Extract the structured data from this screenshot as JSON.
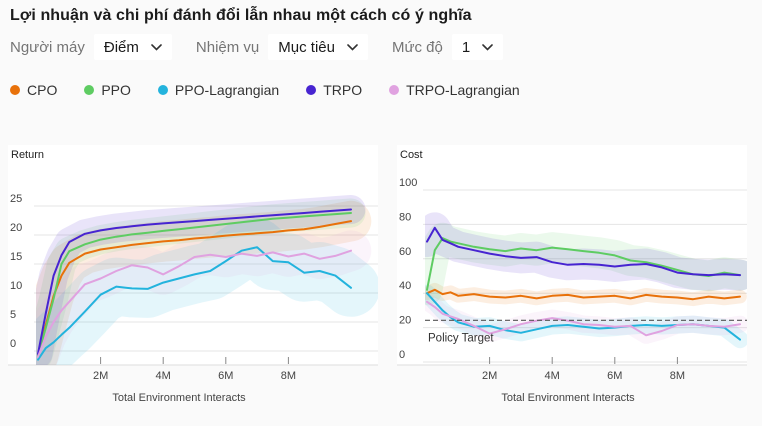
{
  "title": "Lợi nhuận và chi phí đánh đổi lẫn nhau một cách có ý nghĩa",
  "controls": [
    {
      "label": "Người máy",
      "value": "Điểm"
    },
    {
      "label": "Nhiệm vụ",
      "value": "Mục tiêu"
    },
    {
      "label": "Mức độ",
      "value": "1"
    }
  ],
  "legend": [
    {
      "label": "CPO",
      "color": "#e8710a"
    },
    {
      "label": "PPO",
      "color": "#5ecc62"
    },
    {
      "label": "PPO-Lagrangian",
      "color": "#23b3dd"
    },
    {
      "label": "TRPO",
      "color": "#4724d1"
    },
    {
      "label": "TRPO-Lagrangian",
      "color": "#e0a2e0"
    }
  ],
  "chart_data": [
    {
      "type": "line",
      "title": "Return",
      "xlabel": "Total Environment Interacts",
      "xlim": [
        0,
        10
      ],
      "x_tick_values": [
        2,
        4,
        6,
        8
      ],
      "x_tick_labels": [
        "2M",
        "4M",
        "6M",
        "8M"
      ],
      "y_ticks": [
        0,
        5,
        10,
        15,
        20,
        25
      ],
      "ylim": [
        -2,
        27
      ],
      "grid": true,
      "x": [
        0,
        0.25,
        0.5,
        0.75,
        1,
        1.5,
        2,
        2.5,
        3,
        3.5,
        4,
        4.5,
        5,
        5.5,
        6,
        6.5,
        7,
        7.5,
        8,
        8.5,
        9,
        9.5,
        10
      ],
      "series": [
        {
          "name": "CPO",
          "color": "#e8710a",
          "band": 3.5,
          "values": [
            -0.8,
            4.5,
            9.5,
            13,
            15.2,
            16.8,
            17.5,
            17.9,
            18.3,
            18.6,
            18.9,
            19.1,
            19.4,
            19.6,
            19.9,
            20.1,
            20.3,
            20.5,
            20.8,
            21.0,
            21.4,
            21.9,
            22.4
          ]
        },
        {
          "name": "PPO",
          "color": "#5ecc62",
          "band": 2.5,
          "values": [
            -0.8,
            4,
            9,
            15,
            17.2,
            18.4,
            19.2,
            19.7,
            20.1,
            20.4,
            20.7,
            21.0,
            21.3,
            21.6,
            21.9,
            22.2,
            22.5,
            22.8,
            23.0,
            23.2,
            23.4,
            23.6,
            23.8
          ]
        },
        {
          "name": "PPO-Lagrangian",
          "color": "#23b3dd",
          "band": 5,
          "values": [
            -1.5,
            0.5,
            1.5,
            2.8,
            4.0,
            6.8,
            9.7,
            11.1,
            10.8,
            10.7,
            11.8,
            12.5,
            13.2,
            13.8,
            15.5,
            17.3,
            17.9,
            15.5,
            15.3,
            13.5,
            13.8,
            13.0,
            10.9
          ]
        },
        {
          "name": "TRPO",
          "color": "#4724d1",
          "band": 2.5,
          "values": [
            -0.5,
            6.5,
            13,
            16.5,
            18.8,
            20.2,
            20.8,
            21.2,
            21.5,
            21.8,
            22.0,
            22.2,
            22.4,
            22.6,
            22.8,
            23.0,
            23.2,
            23.4,
            23.6,
            23.8,
            24.0,
            24.2,
            24.4
          ]
        },
        {
          "name": "TRPO-Lagrangian",
          "color": "#e0a2e0",
          "band": 3.5,
          "values": [
            -1,
            2.5,
            5,
            7,
            8.5,
            11.5,
            12.5,
            13.8,
            14.8,
            14.4,
            13.2,
            14.6,
            16.2,
            16.6,
            16.2,
            16.8,
            16.4,
            17.0,
            16.3,
            16.8,
            15.9,
            16.4,
            17.3
          ]
        }
      ]
    },
    {
      "type": "line",
      "title": "Cost",
      "xlabel": "Total Environment Interacts",
      "xlim": [
        0,
        10
      ],
      "x_tick_values": [
        2,
        4,
        6,
        8
      ],
      "x_tick_labels": [
        "2M",
        "4M",
        "6M",
        "8M"
      ],
      "y_ticks": [
        0,
        20,
        40,
        60,
        80,
        100
      ],
      "ylim": [
        0,
        105
      ],
      "grid": true,
      "policy_target": {
        "label": "Policy Target",
        "value": 25
      },
      "x": [
        0,
        0.25,
        0.5,
        0.75,
        1,
        1.5,
        2,
        2.5,
        3,
        3.5,
        4,
        4.5,
        5,
        5.5,
        6,
        6.5,
        7,
        7.5,
        8,
        8.5,
        9,
        9.5,
        10
      ],
      "series": [
        {
          "name": "CPO",
          "color": "#e8710a",
          "band": 4,
          "values": [
            40,
            42,
            39.5,
            40.5,
            38.5,
            39.5,
            38,
            37.5,
            38.5,
            37,
            38.5,
            39,
            37.5,
            38,
            38.5,
            37,
            39,
            38,
            37.5,
            36.5,
            38,
            37,
            38
          ]
        },
        {
          "name": "PPO",
          "color": "#5ecc62",
          "band": 9,
          "values": [
            42,
            65,
            72,
            70,
            69,
            67,
            65.5,
            64.5,
            66,
            65,
            66.5,
            65.5,
            64.5,
            63.5,
            62,
            59,
            58,
            56,
            53.5,
            51,
            50,
            52,
            50.5
          ]
        },
        {
          "name": "PPO-Lagrangian",
          "color": "#23b3dd",
          "band": 5,
          "values": [
            40,
            35,
            30,
            26,
            23,
            20.5,
            21,
            18.5,
            17,
            19,
            21,
            21.5,
            20.5,
            19.5,
            20,
            21,
            21.5,
            21,
            21.5,
            22,
            21,
            20,
            13
          ]
        },
        {
          "name": "TRPO",
          "color": "#4724d1",
          "band": 9,
          "values": [
            70,
            78,
            71,
            69,
            67,
            65,
            63,
            61.5,
            60.5,
            61,
            58,
            56.5,
            57,
            56.5,
            55.5,
            56.5,
            57,
            55,
            52,
            51,
            50.5,
            51,
            50.5
          ]
        },
        {
          "name": "TRPO-Lagrangian",
          "color": "#e0a2e0",
          "band": 5,
          "values": [
            35,
            32,
            28,
            26.5,
            25,
            21,
            16.5,
            19,
            22,
            24,
            25.5,
            24,
            22,
            21.5,
            20.5,
            21,
            15.5,
            18,
            21.5,
            22,
            21,
            20.5,
            22
          ]
        }
      ]
    }
  ]
}
